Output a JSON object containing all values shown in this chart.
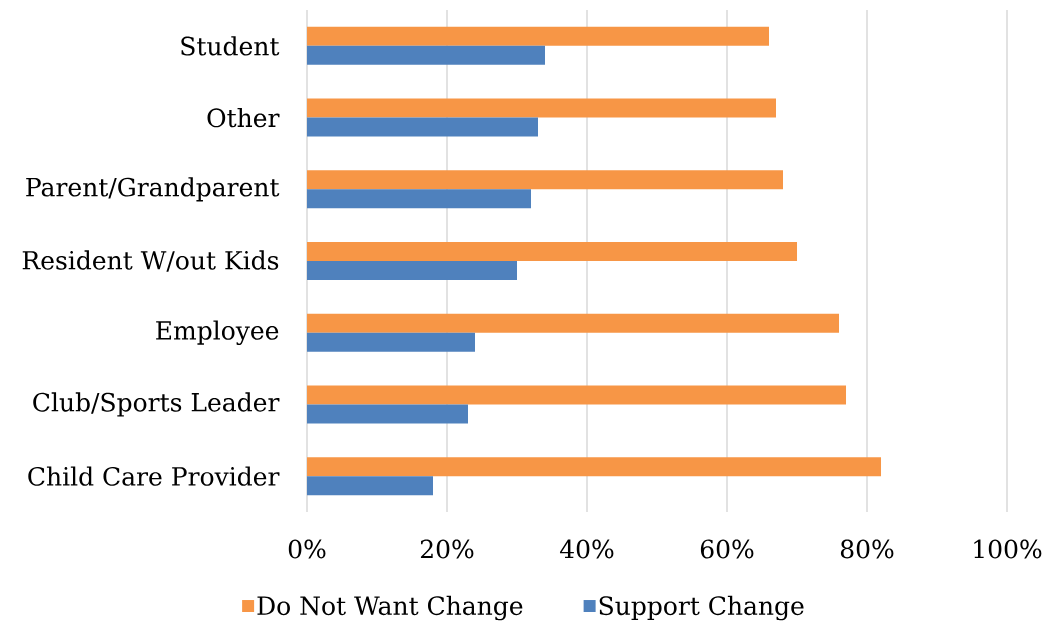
{
  "chart_data": {
    "type": "bar",
    "orientation": "horizontal",
    "categories": [
      "Student",
      "Other",
      "Parent/Grandparent",
      "Resident W/out Kids",
      "Employee",
      "Club/Sports Leader",
      "Child Care Provider"
    ],
    "series": [
      {
        "name": "Do Not Want Change",
        "color": "#f79646",
        "values": [
          66,
          67,
          68,
          70,
          76,
          77,
          82
        ]
      },
      {
        "name": "Support Change",
        "color": "#4f81bd",
        "values": [
          34,
          33,
          32,
          30,
          24,
          23,
          18
        ]
      }
    ],
    "xlim": [
      0,
      100
    ],
    "xticks": [
      {
        "value": 0,
        "label": "0%"
      },
      {
        "value": 20,
        "label": "20%"
      },
      {
        "value": 40,
        "label": "40%"
      },
      {
        "value": 60,
        "label": "60%"
      },
      {
        "value": 80,
        "label": "80%"
      },
      {
        "value": 100,
        "label": "100%"
      }
    ],
    "grid": "x",
    "legend": "bottom"
  }
}
